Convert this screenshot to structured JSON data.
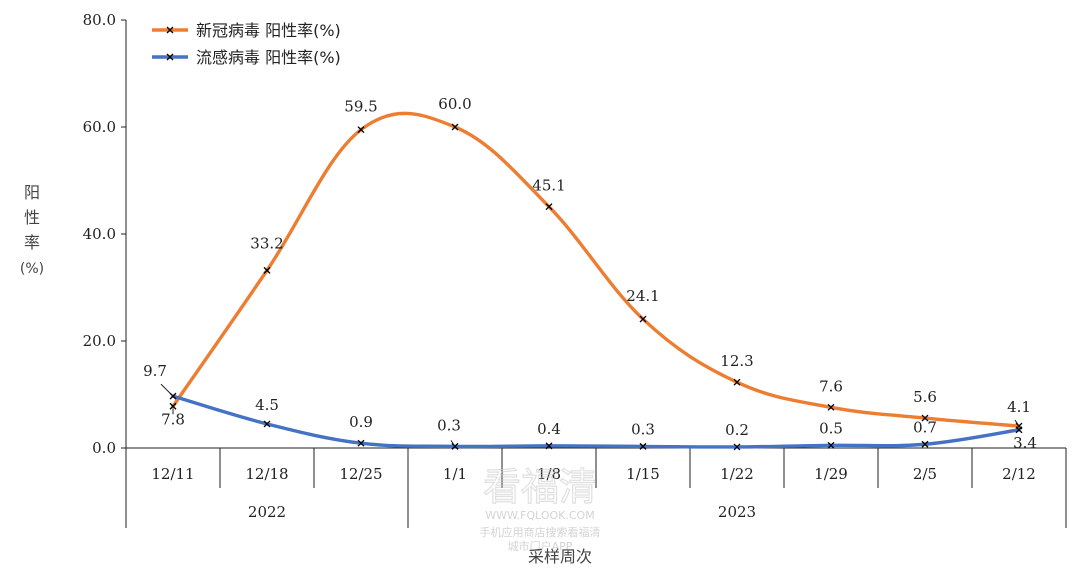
{
  "chart_data": {
    "type": "line",
    "categories": [
      "12/11",
      "12/18",
      "12/25",
      "1/1",
      "1/8",
      "1/15",
      "1/22",
      "1/29",
      "2/5",
      "2/12"
    ],
    "years": [
      {
        "label": "2022",
        "from": 0,
        "to": 2
      },
      {
        "label": "2023",
        "from": 3,
        "to": 9
      }
    ],
    "series": [
      {
        "name": "新冠病毒 阳性率(%)",
        "color": "#ED7D31",
        "values": [
          7.8,
          33.2,
          59.5,
          60.0,
          45.1,
          24.1,
          12.3,
          7.6,
          5.6,
          4.1
        ],
        "labels": [
          "7.8",
          "33.2",
          "59.5",
          "60.0",
          "45.1",
          "24.1",
          "12.3",
          "7.6",
          "5.6",
          "4.1"
        ]
      },
      {
        "name": "流感病毒 阳性率(%)",
        "color": "#4472C4",
        "values": [
          9.7,
          4.5,
          0.9,
          0.3,
          0.4,
          0.3,
          0.2,
          0.5,
          0.7,
          3.4
        ],
        "labels": [
          "9.7",
          "4.5",
          "0.9",
          "0.3",
          "0.4",
          "0.3",
          "0.2",
          "0.5",
          "0.7",
          "3.4"
        ]
      }
    ],
    "ylabel": "阳性率(%)",
    "xlabel": "采样周次",
    "ylim": [
      0,
      80
    ],
    "yticks": [
      "0.0",
      "20.0",
      "40.0",
      "60.0",
      "80.0"
    ],
    "grid": false,
    "legend_position": "top-left",
    "smooth": true
  },
  "watermark": {
    "brand": "看福清",
    "site": "WWW.FQLOOK.COM",
    "line1": "手机应用商店搜索看福清",
    "line2": "城市门户APP"
  }
}
